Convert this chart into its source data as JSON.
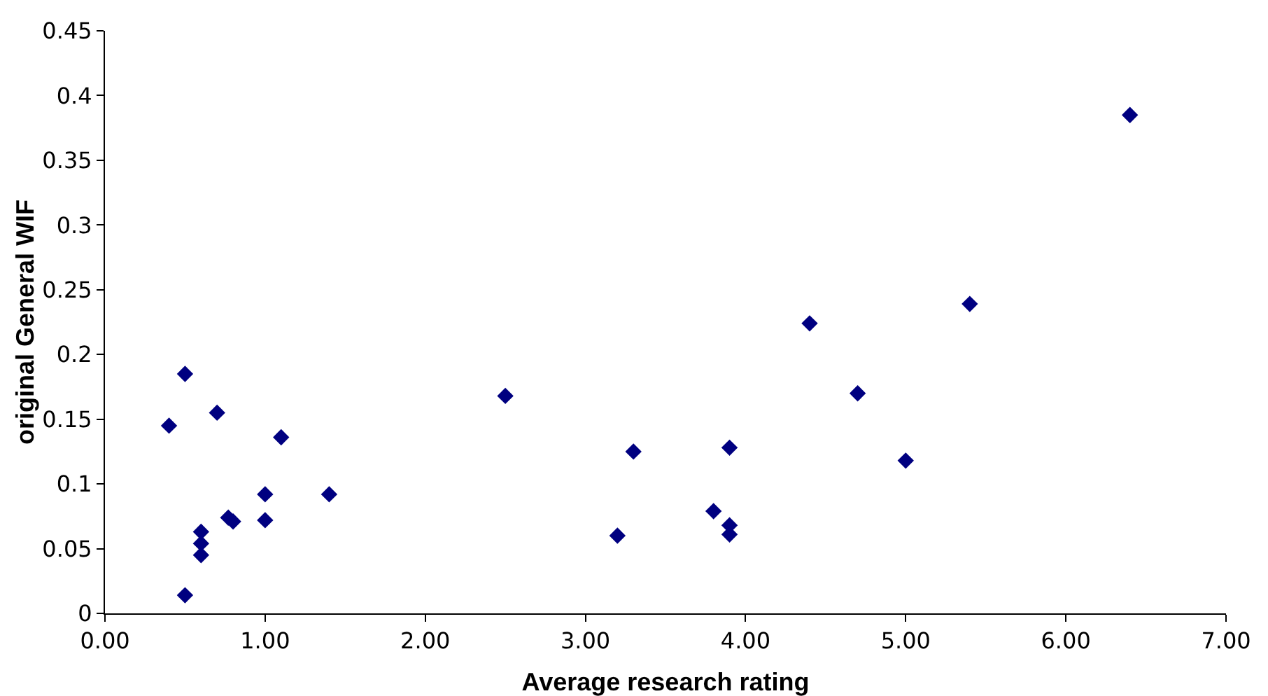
{
  "chart_data": {
    "type": "scatter",
    "xlabel": "Average research rating",
    "ylabel": "original General WIF",
    "x": [
      0.4,
      0.5,
      0.5,
      0.6,
      0.6,
      0.6,
      0.7,
      0.77,
      0.8,
      1.0,
      1.0,
      1.1,
      1.4,
      2.5,
      3.2,
      3.3,
      3.8,
      3.9,
      3.9,
      3.9,
      4.4,
      4.7,
      5.0,
      5.4,
      6.4
    ],
    "series": [
      {
        "color": "#000080",
        "values": [
          0.145,
          0.185,
          0.014,
          0.063,
          0.054,
          0.045,
          0.155,
          0.074,
          0.071,
          0.092,
          0.072,
          0.136,
          0.092,
          0.168,
          0.06,
          0.125,
          0.079,
          0.128,
          0.068,
          0.061,
          0.224,
          0.17,
          0.118,
          0.239,
          0.385
        ]
      }
    ],
    "xlim": [
      0,
      7
    ],
    "xticks": [
      {
        "value": 0,
        "label": "0.00"
      },
      {
        "value": 1,
        "label": "1.00"
      },
      {
        "value": 2,
        "label": "2.00"
      },
      {
        "value": 3,
        "label": "3.00"
      },
      {
        "value": 4,
        "label": "4.00"
      },
      {
        "value": 5,
        "label": "5.00"
      },
      {
        "value": 6,
        "label": "6.00"
      },
      {
        "value": 7,
        "label": "7.00"
      }
    ],
    "ylim": [
      0,
      0.45
    ],
    "yticks": [
      0,
      0.05,
      0.1,
      0.15,
      0.2,
      0.25,
      0.3,
      0.35,
      0.4,
      0.45
    ],
    "grid": false,
    "marker": "diamond"
  }
}
